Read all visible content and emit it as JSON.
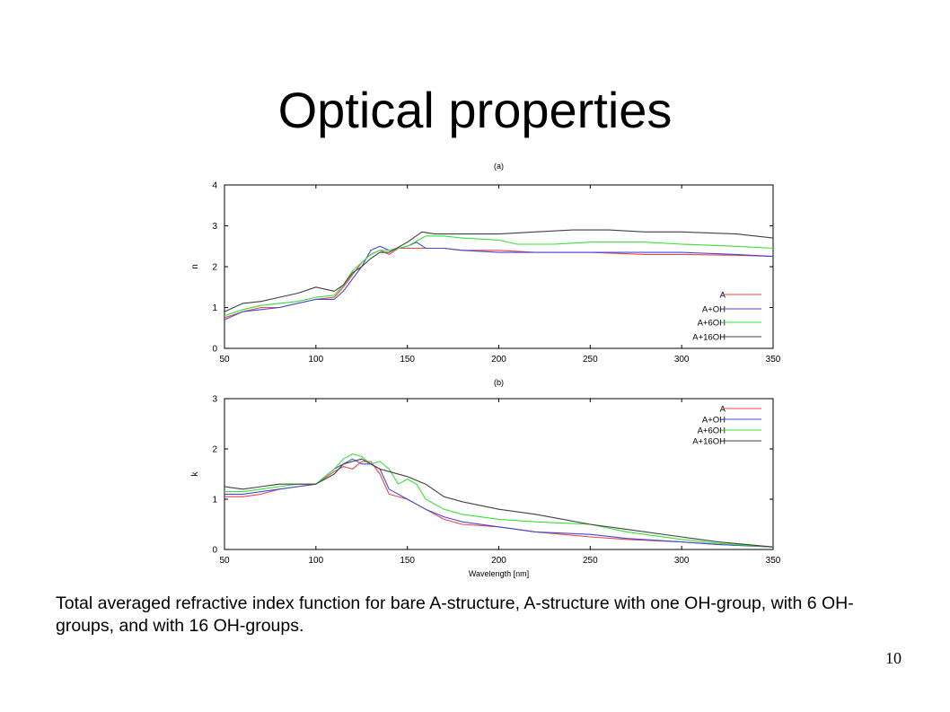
{
  "slide": {
    "title": "Optical properties",
    "caption": "Total averaged refractive index function for bare A-structure, A-structure with one OH-group, with 6 OH-groups, and with 16 OH-groups.",
    "page_number": "10"
  },
  "series_colors": {
    "A": "#e8484b",
    "A+OH": "#4848d8",
    "A+6OH": "#38e038",
    "A+16OH": "#404040"
  },
  "chart_data": [
    {
      "type": "line",
      "title": "(a)",
      "xlabel": "",
      "ylabel": "n",
      "xlim": [
        50,
        350
      ],
      "ylim": [
        0,
        4
      ],
      "xticks": [
        50,
        100,
        150,
        200,
        250,
        300,
        350
      ],
      "yticks": [
        0,
        1,
        2,
        3,
        4
      ],
      "legend_position": "bottom-right",
      "series": [
        {
          "name": "A",
          "x": [
            50,
            60,
            70,
            80,
            90,
            100,
            110,
            115,
            120,
            125,
            130,
            135,
            140,
            145,
            150,
            160,
            170,
            180,
            200,
            220,
            250,
            280,
            300,
            330,
            350
          ],
          "y": [
            0.75,
            0.9,
            1.0,
            1.0,
            1.1,
            1.2,
            1.25,
            1.5,
            1.8,
            2.1,
            2.3,
            2.4,
            2.3,
            2.45,
            2.45,
            2.45,
            2.45,
            2.4,
            2.4,
            2.35,
            2.35,
            2.3,
            2.3,
            2.28,
            2.25
          ]
        },
        {
          "name": "A+OH",
          "x": [
            50,
            60,
            70,
            80,
            90,
            100,
            110,
            115,
            120,
            125,
            130,
            135,
            140,
            145,
            150,
            155,
            160,
            170,
            180,
            200,
            220,
            250,
            280,
            300,
            330,
            350
          ],
          "y": [
            0.7,
            0.9,
            0.95,
            1.0,
            1.1,
            1.2,
            1.2,
            1.4,
            1.7,
            2.0,
            2.4,
            2.5,
            2.4,
            2.45,
            2.5,
            2.6,
            2.45,
            2.45,
            2.4,
            2.35,
            2.35,
            2.35,
            2.35,
            2.35,
            2.3,
            2.25
          ]
        },
        {
          "name": "A+6OH",
          "x": [
            50,
            60,
            70,
            80,
            90,
            100,
            110,
            115,
            120,
            125,
            130,
            135,
            140,
            150,
            160,
            170,
            180,
            200,
            210,
            230,
            250,
            280,
            300,
            330,
            350
          ],
          "y": [
            0.8,
            0.95,
            1.05,
            1.1,
            1.15,
            1.25,
            1.3,
            1.55,
            1.9,
            2.1,
            2.3,
            2.4,
            2.4,
            2.5,
            2.75,
            2.75,
            2.7,
            2.65,
            2.55,
            2.55,
            2.6,
            2.6,
            2.55,
            2.5,
            2.45
          ]
        },
        {
          "name": "A+16OH",
          "x": [
            50,
            60,
            70,
            80,
            90,
            100,
            110,
            115,
            120,
            125,
            130,
            135,
            140,
            150,
            158,
            165,
            180,
            200,
            220,
            240,
            260,
            280,
            300,
            330,
            350
          ],
          "y": [
            0.9,
            1.1,
            1.15,
            1.25,
            1.35,
            1.5,
            1.4,
            1.55,
            1.85,
            2.0,
            2.2,
            2.35,
            2.35,
            2.6,
            2.85,
            2.8,
            2.8,
            2.8,
            2.85,
            2.9,
            2.9,
            2.85,
            2.85,
            2.8,
            2.7
          ]
        }
      ]
    },
    {
      "type": "line",
      "title": "(b)",
      "xlabel": "Wavelength [nm]",
      "ylabel": "k",
      "xlim": [
        50,
        350
      ],
      "ylim": [
        0,
        3
      ],
      "xticks": [
        50,
        100,
        150,
        200,
        250,
        300,
        350
      ],
      "yticks": [
        0,
        1,
        2,
        3
      ],
      "legend_position": "top-right",
      "series": [
        {
          "name": "A",
          "x": [
            50,
            60,
            70,
            80,
            90,
            100,
            110,
            115,
            120,
            125,
            130,
            135,
            140,
            150,
            160,
            170,
            180,
            200,
            220,
            250,
            270,
            300,
            320,
            350
          ],
          "y": [
            1.05,
            1.05,
            1.1,
            1.2,
            1.25,
            1.3,
            1.55,
            1.65,
            1.6,
            1.75,
            1.75,
            1.5,
            1.1,
            1.0,
            0.8,
            0.6,
            0.5,
            0.45,
            0.35,
            0.25,
            0.2,
            0.15,
            0.1,
            0.05
          ]
        },
        {
          "name": "A+OH",
          "x": [
            50,
            60,
            70,
            80,
            90,
            100,
            110,
            115,
            120,
            125,
            130,
            135,
            140,
            150,
            160,
            170,
            180,
            200,
            220,
            250,
            270,
            300,
            320,
            350
          ],
          "y": [
            1.1,
            1.1,
            1.15,
            1.2,
            1.25,
            1.3,
            1.6,
            1.7,
            1.8,
            1.7,
            1.7,
            1.6,
            1.2,
            1.0,
            0.8,
            0.65,
            0.55,
            0.45,
            0.35,
            0.3,
            0.22,
            0.15,
            0.1,
            0.05
          ]
        },
        {
          "name": "A+6OH",
          "x": [
            50,
            60,
            70,
            80,
            90,
            100,
            110,
            115,
            120,
            125,
            130,
            135,
            140,
            145,
            150,
            155,
            160,
            170,
            180,
            200,
            220,
            250,
            270,
            300,
            320,
            350
          ],
          "y": [
            1.15,
            1.15,
            1.2,
            1.25,
            1.3,
            1.3,
            1.6,
            1.8,
            1.9,
            1.85,
            1.7,
            1.75,
            1.6,
            1.3,
            1.4,
            1.3,
            1.0,
            0.8,
            0.7,
            0.6,
            0.55,
            0.5,
            0.35,
            0.2,
            0.12,
            0.05
          ]
        },
        {
          "name": "A+16OH",
          "x": [
            50,
            60,
            70,
            80,
            90,
            100,
            110,
            115,
            120,
            125,
            130,
            135,
            140,
            150,
            160,
            170,
            180,
            200,
            220,
            250,
            270,
            300,
            320,
            350
          ],
          "y": [
            1.25,
            1.2,
            1.25,
            1.3,
            1.3,
            1.3,
            1.5,
            1.7,
            1.75,
            1.8,
            1.7,
            1.6,
            1.55,
            1.45,
            1.3,
            1.05,
            0.95,
            0.8,
            0.7,
            0.5,
            0.4,
            0.25,
            0.15,
            0.05
          ]
        }
      ]
    }
  ]
}
